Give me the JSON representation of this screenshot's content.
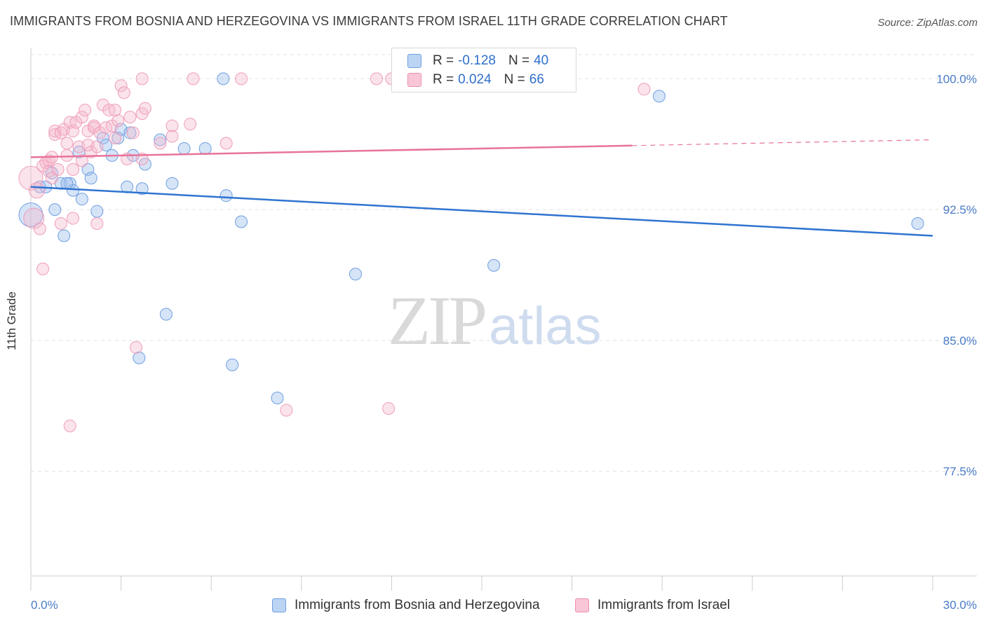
{
  "title": "IMMIGRANTS FROM BOSNIA AND HERZEGOVINA VS IMMIGRANTS FROM ISRAEL 11TH GRADE CORRELATION CHART",
  "source": "Source: ZipAtlas.com",
  "watermark": {
    "zip": "ZIP",
    "atlas": "atlas"
  },
  "legend": {
    "rows": [
      {
        "r_label": "R =",
        "r_value": "-0.128",
        "n_label": "N =",
        "n_value": "40"
      },
      {
        "r_label": "R =",
        "r_value": "0.024",
        "n_label": "N =",
        "n_value": "66"
      }
    ]
  },
  "chart_data": {
    "type": "scatter",
    "title": "IMMIGRANTS FROM BOSNIA AND HERZEGOVINA VS IMMIGRANTS FROM ISRAEL 11TH GRADE CORRELATION CHART",
    "xlabel": "",
    "ylabel": "11th Grade",
    "xlim": [
      0,
      30
    ],
    "ylim": [
      71.5,
      101.5
    ],
    "x_tick_labels": [
      "0.0%",
      "30.0%"
    ],
    "y_ticks": [
      77.5,
      85.0,
      92.5,
      100.0
    ],
    "y_tick_labels": [
      "77.5%",
      "85.0%",
      "92.5%",
      "100.0%"
    ],
    "grid": true,
    "legend_position": "top-center",
    "colors": {
      "bosnia": "#4a86d8",
      "israel": "#ec86a8",
      "bosnia_line": "#2f74d0",
      "israel_line": "#e8739b"
    },
    "series": [
      {
        "name": "Immigrants from Bosnia and Herzegovina",
        "color": "#4a86d8",
        "trend": {
          "x0": 0.0,
          "y0": 93.8,
          "x1": 30.0,
          "y1": 91.0,
          "dashed_from": null
        },
        "points": [
          [
            0.0,
            92.2,
            2.0
          ],
          [
            0.3,
            93.8,
            1.0
          ],
          [
            0.5,
            93.8,
            1.0
          ],
          [
            0.7,
            94.6,
            1.0
          ],
          [
            0.8,
            92.5,
            1.0
          ],
          [
            1.0,
            94.0,
            1.0
          ],
          [
            1.1,
            91.0,
            1.0
          ],
          [
            1.3,
            94.0,
            1.0
          ],
          [
            1.4,
            93.6,
            1.0
          ],
          [
            1.6,
            95.8,
            1.0
          ],
          [
            1.7,
            93.1,
            1.0
          ],
          [
            1.9,
            94.8,
            1.0
          ],
          [
            2.0,
            94.3,
            1.0
          ],
          [
            2.2,
            92.4,
            1.0
          ],
          [
            2.4,
            96.6,
            1.0
          ],
          [
            2.5,
            96.2,
            1.0
          ],
          [
            2.7,
            95.6,
            1.0
          ],
          [
            2.9,
            96.6,
            1.0
          ],
          [
            3.0,
            97.1,
            1.0
          ],
          [
            3.2,
            93.8,
            1.0
          ],
          [
            3.3,
            96.9,
            1.0
          ],
          [
            3.4,
            95.6,
            1.0
          ],
          [
            3.7,
            93.7,
            1.0
          ],
          [
            3.8,
            95.1,
            1.0
          ],
          [
            4.3,
            96.5,
            1.0
          ],
          [
            4.7,
            94.0,
            1.0
          ],
          [
            5.1,
            96.0,
            1.0
          ],
          [
            5.8,
            96.0,
            1.0
          ],
          [
            6.4,
            100.0,
            1.0
          ],
          [
            6.5,
            93.3,
            1.0
          ],
          [
            7.0,
            91.8,
            1.0
          ],
          [
            3.6,
            84.0,
            1.0
          ],
          [
            4.5,
            86.5,
            1.0
          ],
          [
            6.7,
            83.6,
            1.0
          ],
          [
            8.2,
            81.7,
            1.0
          ],
          [
            10.8,
            88.8,
            1.0
          ],
          [
            15.4,
            89.3,
            1.0
          ],
          [
            20.9,
            99.0,
            1.0
          ],
          [
            29.5,
            91.7,
            1.0
          ],
          [
            1.2,
            94.0,
            1.0
          ]
        ]
      },
      {
        "name": "Immigrants from Israel",
        "color": "#ec86a8",
        "trend": {
          "x0": 0.0,
          "y0": 95.5,
          "x1": 30.0,
          "y1": 96.5,
          "dashed_from": 20.0
        },
        "points": [
          [
            0.0,
            94.3,
            2.0
          ],
          [
            0.1,
            92.0,
            1.7
          ],
          [
            0.2,
            93.6,
            1.3
          ],
          [
            0.3,
            91.4,
            1.0
          ],
          [
            0.4,
            95.0,
            1.0
          ],
          [
            0.4,
            89.1,
            1.0
          ],
          [
            0.5,
            95.2,
            1.0
          ],
          [
            0.6,
            95.3,
            1.0
          ],
          [
            0.6,
            94.7,
            1.0
          ],
          [
            0.7,
            95.5,
            1.0
          ],
          [
            0.7,
            94.3,
            1.0
          ],
          [
            0.8,
            96.8,
            1.0
          ],
          [
            0.8,
            97.0,
            1.0
          ],
          [
            0.9,
            94.8,
            1.0
          ],
          [
            1.0,
            91.7,
            1.0
          ],
          [
            1.0,
            96.9,
            1.0
          ],
          [
            1.1,
            97.1,
            1.0
          ],
          [
            1.2,
            95.6,
            1.0
          ],
          [
            1.2,
            96.3,
            1.0
          ],
          [
            1.3,
            97.5,
            1.0
          ],
          [
            1.4,
            97.0,
            1.0
          ],
          [
            1.4,
            94.8,
            1.0
          ],
          [
            1.4,
            92.0,
            1.0
          ],
          [
            1.5,
            97.5,
            1.0
          ],
          [
            1.6,
            96.1,
            1.0
          ],
          [
            1.7,
            95.3,
            1.0
          ],
          [
            1.7,
            97.8,
            1.0
          ],
          [
            1.8,
            98.2,
            1.0
          ],
          [
            1.9,
            96.2,
            1.0
          ],
          [
            1.9,
            97.0,
            1.0
          ],
          [
            2.0,
            95.8,
            1.0
          ],
          [
            2.1,
            97.3,
            1.0
          ],
          [
            2.1,
            97.2,
            1.0
          ],
          [
            2.2,
            96.1,
            1.0
          ],
          [
            2.2,
            91.7,
            1.0
          ],
          [
            2.3,
            96.9,
            1.0
          ],
          [
            2.4,
            98.5,
            1.0
          ],
          [
            2.5,
            97.2,
            1.0
          ],
          [
            2.6,
            98.2,
            1.0
          ],
          [
            2.7,
            97.3,
            1.0
          ],
          [
            2.8,
            98.2,
            1.0
          ],
          [
            2.8,
            96.6,
            1.0
          ],
          [
            2.9,
            97.6,
            1.0
          ],
          [
            3.0,
            99.6,
            1.0
          ],
          [
            3.1,
            99.2,
            1.0
          ],
          [
            3.2,
            95.4,
            1.0
          ],
          [
            3.3,
            97.8,
            1.0
          ],
          [
            3.4,
            96.9,
            1.0
          ],
          [
            3.7,
            98.0,
            1.0
          ],
          [
            3.7,
            95.4,
            1.0
          ],
          [
            3.8,
            98.3,
            1.0
          ],
          [
            3.7,
            100.0,
            1.0
          ],
          [
            4.3,
            96.3,
            1.0
          ],
          [
            4.7,
            97.3,
            1.0
          ],
          [
            4.7,
            96.7,
            1.0
          ],
          [
            5.3,
            97.4,
            1.0
          ],
          [
            5.4,
            100.0,
            1.0
          ],
          [
            6.5,
            96.3,
            1.0
          ],
          [
            7.0,
            100.0,
            1.0
          ],
          [
            3.5,
            84.6,
            1.0
          ],
          [
            1.3,
            80.1,
            1.0
          ],
          [
            8.5,
            81.0,
            1.0
          ],
          [
            11.5,
            100.0,
            1.0
          ],
          [
            12.0,
            100.0,
            1.0
          ],
          [
            11.9,
            81.1,
            1.0
          ],
          [
            20.4,
            99.4,
            1.0
          ]
        ]
      }
    ]
  },
  "bottom_legend": [
    {
      "label": "Immigrants from Bosnia and Herzegovina"
    },
    {
      "label": "Immigrants from Israel"
    }
  ]
}
